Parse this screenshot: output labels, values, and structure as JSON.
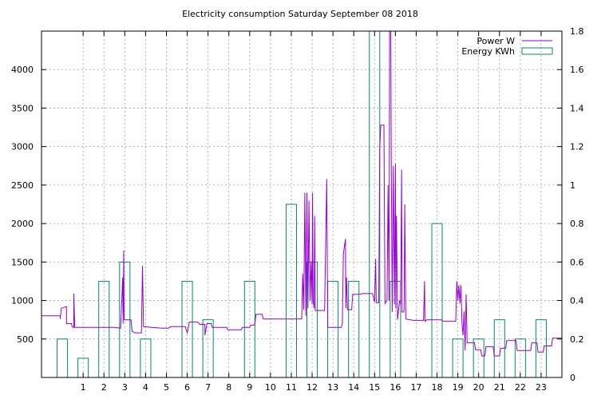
{
  "chart_data": {
    "type": "line",
    "title": "Electricity consumption Saturday September 08 2018",
    "xlabel": "",
    "ylabel": "",
    "y2label": "",
    "xlim": [
      -1,
      24
    ],
    "ylim": [
      0,
      4500
    ],
    "y2lim": [
      0,
      1.8
    ],
    "x_ticks": [
      1,
      2,
      3,
      4,
      5,
      6,
      7,
      8,
      9,
      10,
      11,
      12,
      13,
      14,
      15,
      16,
      17,
      18,
      19,
      20,
      21,
      22,
      23
    ],
    "y_ticks": [
      500,
      1000,
      1500,
      2000,
      2500,
      3000,
      3500,
      4000
    ],
    "y2_ticks": [
      "0",
      "0.2",
      "0.4",
      "0.6",
      "0.8",
      "1",
      "1.2",
      "1.4",
      "1.6",
      "1.8"
    ],
    "grid": true,
    "legend_position": "top-right",
    "series": [
      {
        "name": "Power W",
        "axis": "y1",
        "color": "#9400d3",
        "style": "line",
        "points": [
          [
            -1,
            800
          ],
          [
            -0.1,
            800
          ],
          [
            -0.1,
            760
          ],
          [
            -0.05,
            900
          ],
          [
            0.2,
            920
          ],
          [
            0.2,
            700
          ],
          [
            0.45,
            700
          ],
          [
            0.45,
            680
          ],
          [
            0.5,
            650
          ],
          [
            0.55,
            650
          ],
          [
            0.55,
            1090
          ],
          [
            0.6,
            650
          ],
          [
            1.5,
            650
          ],
          [
            2.5,
            650
          ],
          [
            2.8,
            640
          ],
          [
            2.9,
            1300
          ],
          [
            2.92,
            700
          ],
          [
            2.95,
            1650
          ],
          [
            2.97,
            750
          ],
          [
            3.3,
            750
          ],
          [
            3.35,
            600
          ],
          [
            3.5,
            580
          ],
          [
            3.8,
            580
          ],
          [
            3.85,
            1450
          ],
          [
            3.9,
            660
          ],
          [
            4.3,
            650
          ],
          [
            4.8,
            640
          ],
          [
            5.1,
            640
          ],
          [
            5.2,
            660
          ],
          [
            5.9,
            660
          ],
          [
            6.0,
            580
          ],
          [
            6.1,
            720
          ],
          [
            6.5,
            720
          ],
          [
            6.6,
            690
          ],
          [
            6.85,
            690
          ],
          [
            6.85,
            550
          ],
          [
            6.95,
            700
          ],
          [
            7.15,
            700
          ],
          [
            7.2,
            650
          ],
          [
            7.9,
            650
          ],
          [
            7.95,
            620
          ],
          [
            8.6,
            620
          ],
          [
            8.65,
            650
          ],
          [
            9.0,
            650
          ],
          [
            9.05,
            680
          ],
          [
            9.25,
            680
          ],
          [
            9.3,
            820
          ],
          [
            9.6,
            820
          ],
          [
            9.65,
            760
          ],
          [
            11.5,
            760
          ],
          [
            11.55,
            1350
          ],
          [
            11.6,
            880
          ],
          [
            11.65,
            2400
          ],
          [
            11.7,
            800
          ],
          [
            11.75,
            2400
          ],
          [
            11.8,
            900
          ],
          [
            11.85,
            2300
          ],
          [
            11.9,
            1000
          ],
          [
            11.95,
            1500
          ],
          [
            12.0,
            950
          ],
          [
            12.02,
            2400
          ],
          [
            12.05,
            1000
          ],
          [
            12.1,
            900
          ],
          [
            12.12,
            2100
          ],
          [
            12.15,
            870
          ],
          [
            12.5,
            870
          ],
          [
            12.6,
            870
          ],
          [
            12.7,
            2580
          ],
          [
            12.75,
            650
          ],
          [
            13.4,
            650
          ],
          [
            13.45,
            700
          ],
          [
            13.5,
            1600
          ],
          [
            13.55,
            1700
          ],
          [
            13.6,
            1800
          ],
          [
            13.62,
            900
          ],
          [
            13.65,
            1300
          ],
          [
            13.7,
            880
          ],
          [
            13.9,
            880
          ],
          [
            13.95,
            1080
          ],
          [
            14.3,
            1080
          ],
          [
            14.4,
            1090
          ],
          [
            14.9,
            1090
          ],
          [
            15.0,
            980
          ],
          [
            15.05,
            1540
          ],
          [
            15.08,
            970
          ],
          [
            15.2,
            970
          ],
          [
            15.25,
            3000
          ],
          [
            15.3,
            3280
          ],
          [
            15.45,
            3280
          ],
          [
            15.5,
            960
          ],
          [
            15.6,
            1000
          ],
          [
            15.65,
            2500
          ],
          [
            15.7,
            1000
          ],
          [
            15.72,
            4500
          ],
          [
            15.78,
            4500
          ],
          [
            15.8,
            3000
          ],
          [
            15.85,
            850
          ],
          [
            15.9,
            2750
          ],
          [
            15.95,
            950
          ],
          [
            16.0,
            2780
          ],
          [
            16.02,
            900
          ],
          [
            16.05,
            2100
          ],
          [
            16.1,
            750
          ],
          [
            16.2,
            1000
          ],
          [
            16.25,
            950
          ],
          [
            16.3,
            2700
          ],
          [
            16.32,
            850
          ],
          [
            16.4,
            850
          ],
          [
            16.42,
            900
          ],
          [
            16.45,
            2250
          ],
          [
            16.5,
            760
          ],
          [
            16.9,
            740
          ],
          [
            17.35,
            740
          ],
          [
            17.4,
            1250
          ],
          [
            17.42,
            730
          ],
          [
            17.5,
            750
          ],
          [
            18.2,
            750
          ],
          [
            18.3,
            730
          ],
          [
            18.9,
            730
          ],
          [
            18.95,
            1250
          ],
          [
            19.0,
            1000
          ],
          [
            19.05,
            1200
          ],
          [
            19.1,
            960
          ],
          [
            19.15,
            1200
          ],
          [
            19.2,
            700
          ],
          [
            19.25,
            550
          ],
          [
            19.3,
            860
          ],
          [
            19.35,
            350
          ],
          [
            19.4,
            1080
          ],
          [
            19.45,
            450
          ],
          [
            19.8,
            450
          ],
          [
            19.85,
            360
          ],
          [
            20.1,
            360
          ],
          [
            20.15,
            280
          ],
          [
            20.3,
            280
          ],
          [
            20.35,
            400
          ],
          [
            20.7,
            400
          ],
          [
            20.75,
            280
          ],
          [
            21.0,
            280
          ],
          [
            21.05,
            380
          ],
          [
            21.3,
            380
          ],
          [
            21.35,
            480
          ],
          [
            21.8,
            480
          ],
          [
            21.85,
            350
          ],
          [
            22.5,
            350
          ],
          [
            22.55,
            450
          ],
          [
            22.8,
            450
          ],
          [
            22.85,
            330
          ],
          [
            23.1,
            330
          ],
          [
            23.15,
            410
          ],
          [
            23.5,
            410
          ],
          [
            23.55,
            510
          ],
          [
            24,
            510
          ]
        ]
      },
      {
        "name": "Energy KWh",
        "axis": "y2",
        "color": "#008b6b",
        "style": "boxes",
        "hours": [
          0,
          1,
          2,
          3,
          4,
          5,
          6,
          7,
          8,
          9,
          10,
          11,
          12,
          13,
          14,
          15,
          16,
          17,
          18,
          19,
          20,
          21,
          22,
          23
        ],
        "values": [
          0.2,
          0.1,
          0.5,
          0.6,
          0.2,
          0,
          0.5,
          0.3,
          0,
          0.5,
          0,
          0.9,
          0.6,
          0.5,
          0.5,
          1.8,
          0.5,
          0,
          0.8,
          0.2,
          0.2,
          0.3,
          0.2,
          0.3
        ]
      }
    ]
  }
}
